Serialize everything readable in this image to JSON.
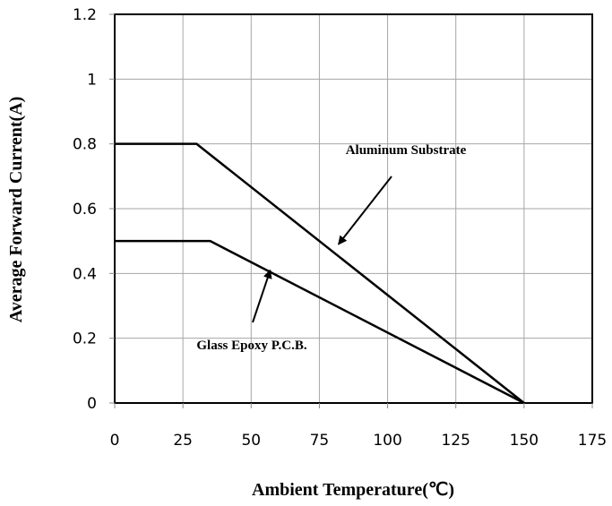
{
  "chart_data": {
    "type": "line",
    "title": "",
    "xlabel": "Ambient Temperature(℃)",
    "ylabel": "Average Forward Current(A)",
    "xlim": [
      0,
      175
    ],
    "ylim": [
      0,
      1.2
    ],
    "x_ticks": [
      "0",
      "25",
      "50",
      "75",
      "100",
      "125",
      "150",
      "175"
    ],
    "y_ticks": [
      "0",
      "0.2",
      "0.4",
      "0.6",
      "0.8",
      "1",
      "1.2"
    ],
    "grid": true,
    "series": [
      {
        "name": "Aluminum Substrate",
        "x": [
          0,
          30,
          150
        ],
        "y": [
          0.8,
          0.8,
          0
        ]
      },
      {
        "name": "Glass Epoxy P.C.B.",
        "x": [
          0,
          35,
          150
        ],
        "y": [
          0.5,
          0.5,
          0
        ]
      }
    ],
    "annotations": [
      {
        "text": "Aluminum Substrate",
        "points_to": {
          "x": 82,
          "y": 0.49
        }
      },
      {
        "text": "Glass Epoxy P.C.B.",
        "points_to": {
          "x": 57,
          "y": 0.41
        }
      }
    ],
    "line_color": "#000000",
    "grid_color": "#a6a6a6"
  }
}
